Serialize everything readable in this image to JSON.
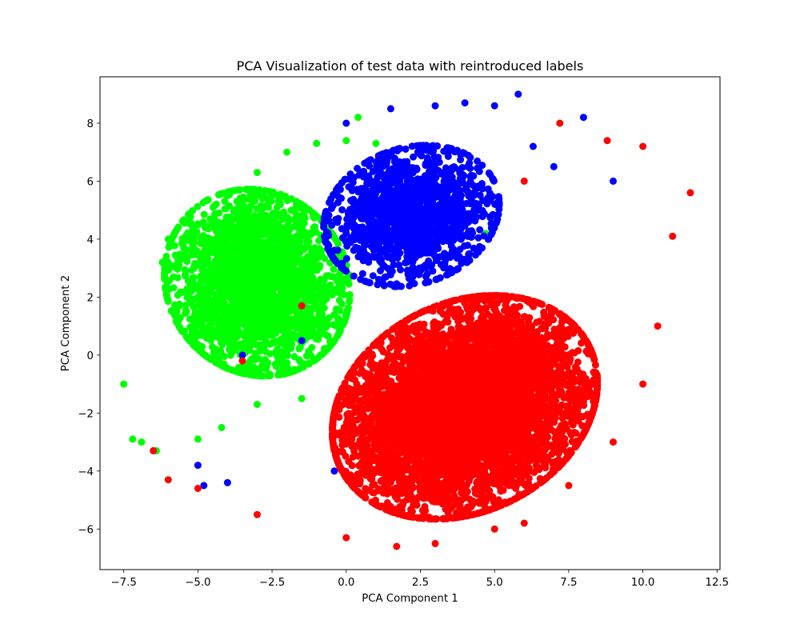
{
  "chart_data": {
    "type": "scatter",
    "title": "PCA Visualization of test data with reintroduced labels",
    "xlabel": "PCA Component 1",
    "ylabel": "PCA Component 2",
    "xlim": [
      -8.3,
      12.6
    ],
    "ylim": [
      -7.4,
      9.6
    ],
    "x_ticks": [
      -7.5,
      -5.0,
      -2.5,
      0.0,
      2.5,
      5.0,
      7.5,
      10.0,
      12.5
    ],
    "x_tick_labels": [
      "−7.5",
      "−5.0",
      "−2.5",
      "0.0",
      "2.5",
      "5.0",
      "7.5",
      "10.0",
      "12.5"
    ],
    "y_ticks": [
      -6,
      -4,
      -2,
      0,
      2,
      4,
      6,
      8
    ],
    "y_tick_labels": [
      "−6",
      "−4",
      "−2",
      "0",
      "2",
      "4",
      "6",
      "8"
    ],
    "grid": false,
    "legend": "none",
    "series": [
      {
        "color": "#00ff00",
        "center": [
          -3.0,
          2.5
        ],
        "spread": [
          2.2,
          2.4
        ],
        "rotation_deg": 35,
        "count": 2600,
        "points": [
          [
            -7.5,
            -1.0
          ],
          [
            -7.2,
            -2.9
          ],
          [
            -6.9,
            -3.0
          ],
          [
            -6.4,
            -3.3
          ],
          [
            -6.2,
            3.2
          ],
          [
            -6.0,
            4.0
          ],
          [
            -5.0,
            4.5
          ],
          [
            -4.0,
            5.5
          ],
          [
            -3.0,
            6.3
          ],
          [
            -2.0,
            7.0
          ],
          [
            -1.0,
            7.3
          ],
          [
            0.0,
            7.4
          ],
          [
            0.4,
            8.2
          ],
          [
            1.0,
            7.3
          ],
          [
            2.0,
            6.5
          ],
          [
            3.0,
            4.0
          ],
          [
            4.7,
            4.2
          ],
          [
            -5.0,
            -2.9
          ],
          [
            -4.2,
            -2.5
          ],
          [
            -3.0,
            -1.7
          ],
          [
            -1.5,
            -1.5
          ]
        ]
      },
      {
        "color": "#0000ff",
        "center": [
          2.2,
          4.8
        ],
        "spread": [
          2.2,
          1.7
        ],
        "rotation_deg": 20,
        "count": 1500,
        "points": [
          [
            0.0,
            8.0
          ],
          [
            1.5,
            8.5
          ],
          [
            3.0,
            8.6
          ],
          [
            4.0,
            8.7
          ],
          [
            5.0,
            8.6
          ],
          [
            5.8,
            9.0
          ],
          [
            6.3,
            7.2
          ],
          [
            7.0,
            6.5
          ],
          [
            8.0,
            8.2
          ],
          [
            9.0,
            6.0
          ],
          [
            -5.0,
            -3.8
          ],
          [
            -4.8,
            -4.5
          ],
          [
            -4.0,
            -4.4
          ],
          [
            -0.4,
            -4.0
          ],
          [
            7.3,
            1.2
          ],
          [
            -3.5,
            0.0
          ],
          [
            -1.5,
            0.5
          ]
        ]
      },
      {
        "color": "#ff0000",
        "center": [
          4.0,
          -1.8
        ],
        "spread": [
          3.4,
          2.6
        ],
        "rotation_deg": 28,
        "count": 6000,
        "points": [
          [
            -6.5,
            -3.3
          ],
          [
            -6.0,
            -4.3
          ],
          [
            -5.0,
            -4.6
          ],
          [
            -3.0,
            -5.5
          ],
          [
            0.0,
            -6.3
          ],
          [
            1.7,
            -6.6
          ],
          [
            3.0,
            -6.5
          ],
          [
            5.0,
            -6.0
          ],
          [
            6.0,
            -5.8
          ],
          [
            7.5,
            -4.5
          ],
          [
            9.0,
            -3.0
          ],
          [
            10.0,
            -1.0
          ],
          [
            10.5,
            1.0
          ],
          [
            11.0,
            4.1
          ],
          [
            11.6,
            5.6
          ],
          [
            10.0,
            7.2
          ],
          [
            8.8,
            7.4
          ],
          [
            7.2,
            8.0
          ],
          [
            6.0,
            6.0
          ],
          [
            -1.5,
            1.7
          ],
          [
            -3.5,
            -0.2
          ]
        ]
      }
    ]
  }
}
